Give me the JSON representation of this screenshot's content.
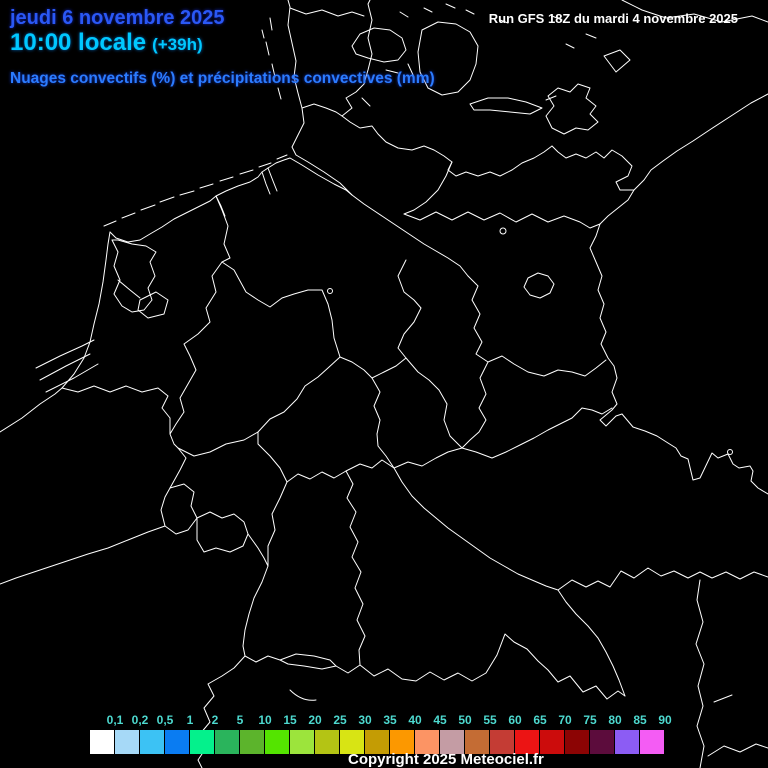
{
  "header": {
    "date_line": "jeudi 6 novembre 2025",
    "time_line": "10:00 locale",
    "time_offset": "(+39h)",
    "subtitle": "Nuages convectifs (%) et précipitations convectives (mm)",
    "run_info": "Run GFS 18Z du mardi 4 novembre 2025"
  },
  "footer": {
    "copyright": "Copyright 2025 Meteociel.fr"
  },
  "colors": {
    "background": "#000000",
    "map_lines": "#ffffff",
    "date_text": "#2a58f5",
    "time_text": "#00c8ff",
    "subtitle_text": "#2b7cff",
    "run_text": "#ffffff",
    "legend_label_text": "#4dd9cf",
    "copyright_text": "#ffffff"
  },
  "legend": {
    "unit": "mm",
    "items": [
      {
        "label": "0,1",
        "color": "#ffffff"
      },
      {
        "label": "0,2",
        "color": "#a6d9f7"
      },
      {
        "label": "0,5",
        "color": "#3cc2f4"
      },
      {
        "label": "1",
        "color": "#0a7cf2"
      },
      {
        "label": "2",
        "color": "#04f18c"
      },
      {
        "label": "5",
        "color": "#2ab45c"
      },
      {
        "label": "10",
        "color": "#5cb42c"
      },
      {
        "label": "15",
        "color": "#54e400"
      },
      {
        "label": "20",
        "color": "#9ce43c"
      },
      {
        "label": "25",
        "color": "#b4c414"
      },
      {
        "label": "30",
        "color": "#d8e414"
      },
      {
        "label": "35",
        "color": "#c49c04"
      },
      {
        "label": "40",
        "color": "#fc9800"
      },
      {
        "label": "45",
        "color": "#fc9464"
      },
      {
        "label": "50",
        "color": "#c49ca4"
      },
      {
        "label": "55",
        "color": "#c46c34"
      },
      {
        "label": "60",
        "color": "#c43c34"
      },
      {
        "label": "65",
        "color": "#ec1414"
      },
      {
        "label": "70",
        "color": "#cc0c0c"
      },
      {
        "label": "75",
        "color": "#8c0404"
      },
      {
        "label": "80",
        "color": "#5c0c3c"
      },
      {
        "label": "85",
        "color": "#8c5cf4"
      },
      {
        "label": "90",
        "color": "#f45cf4"
      }
    ]
  }
}
